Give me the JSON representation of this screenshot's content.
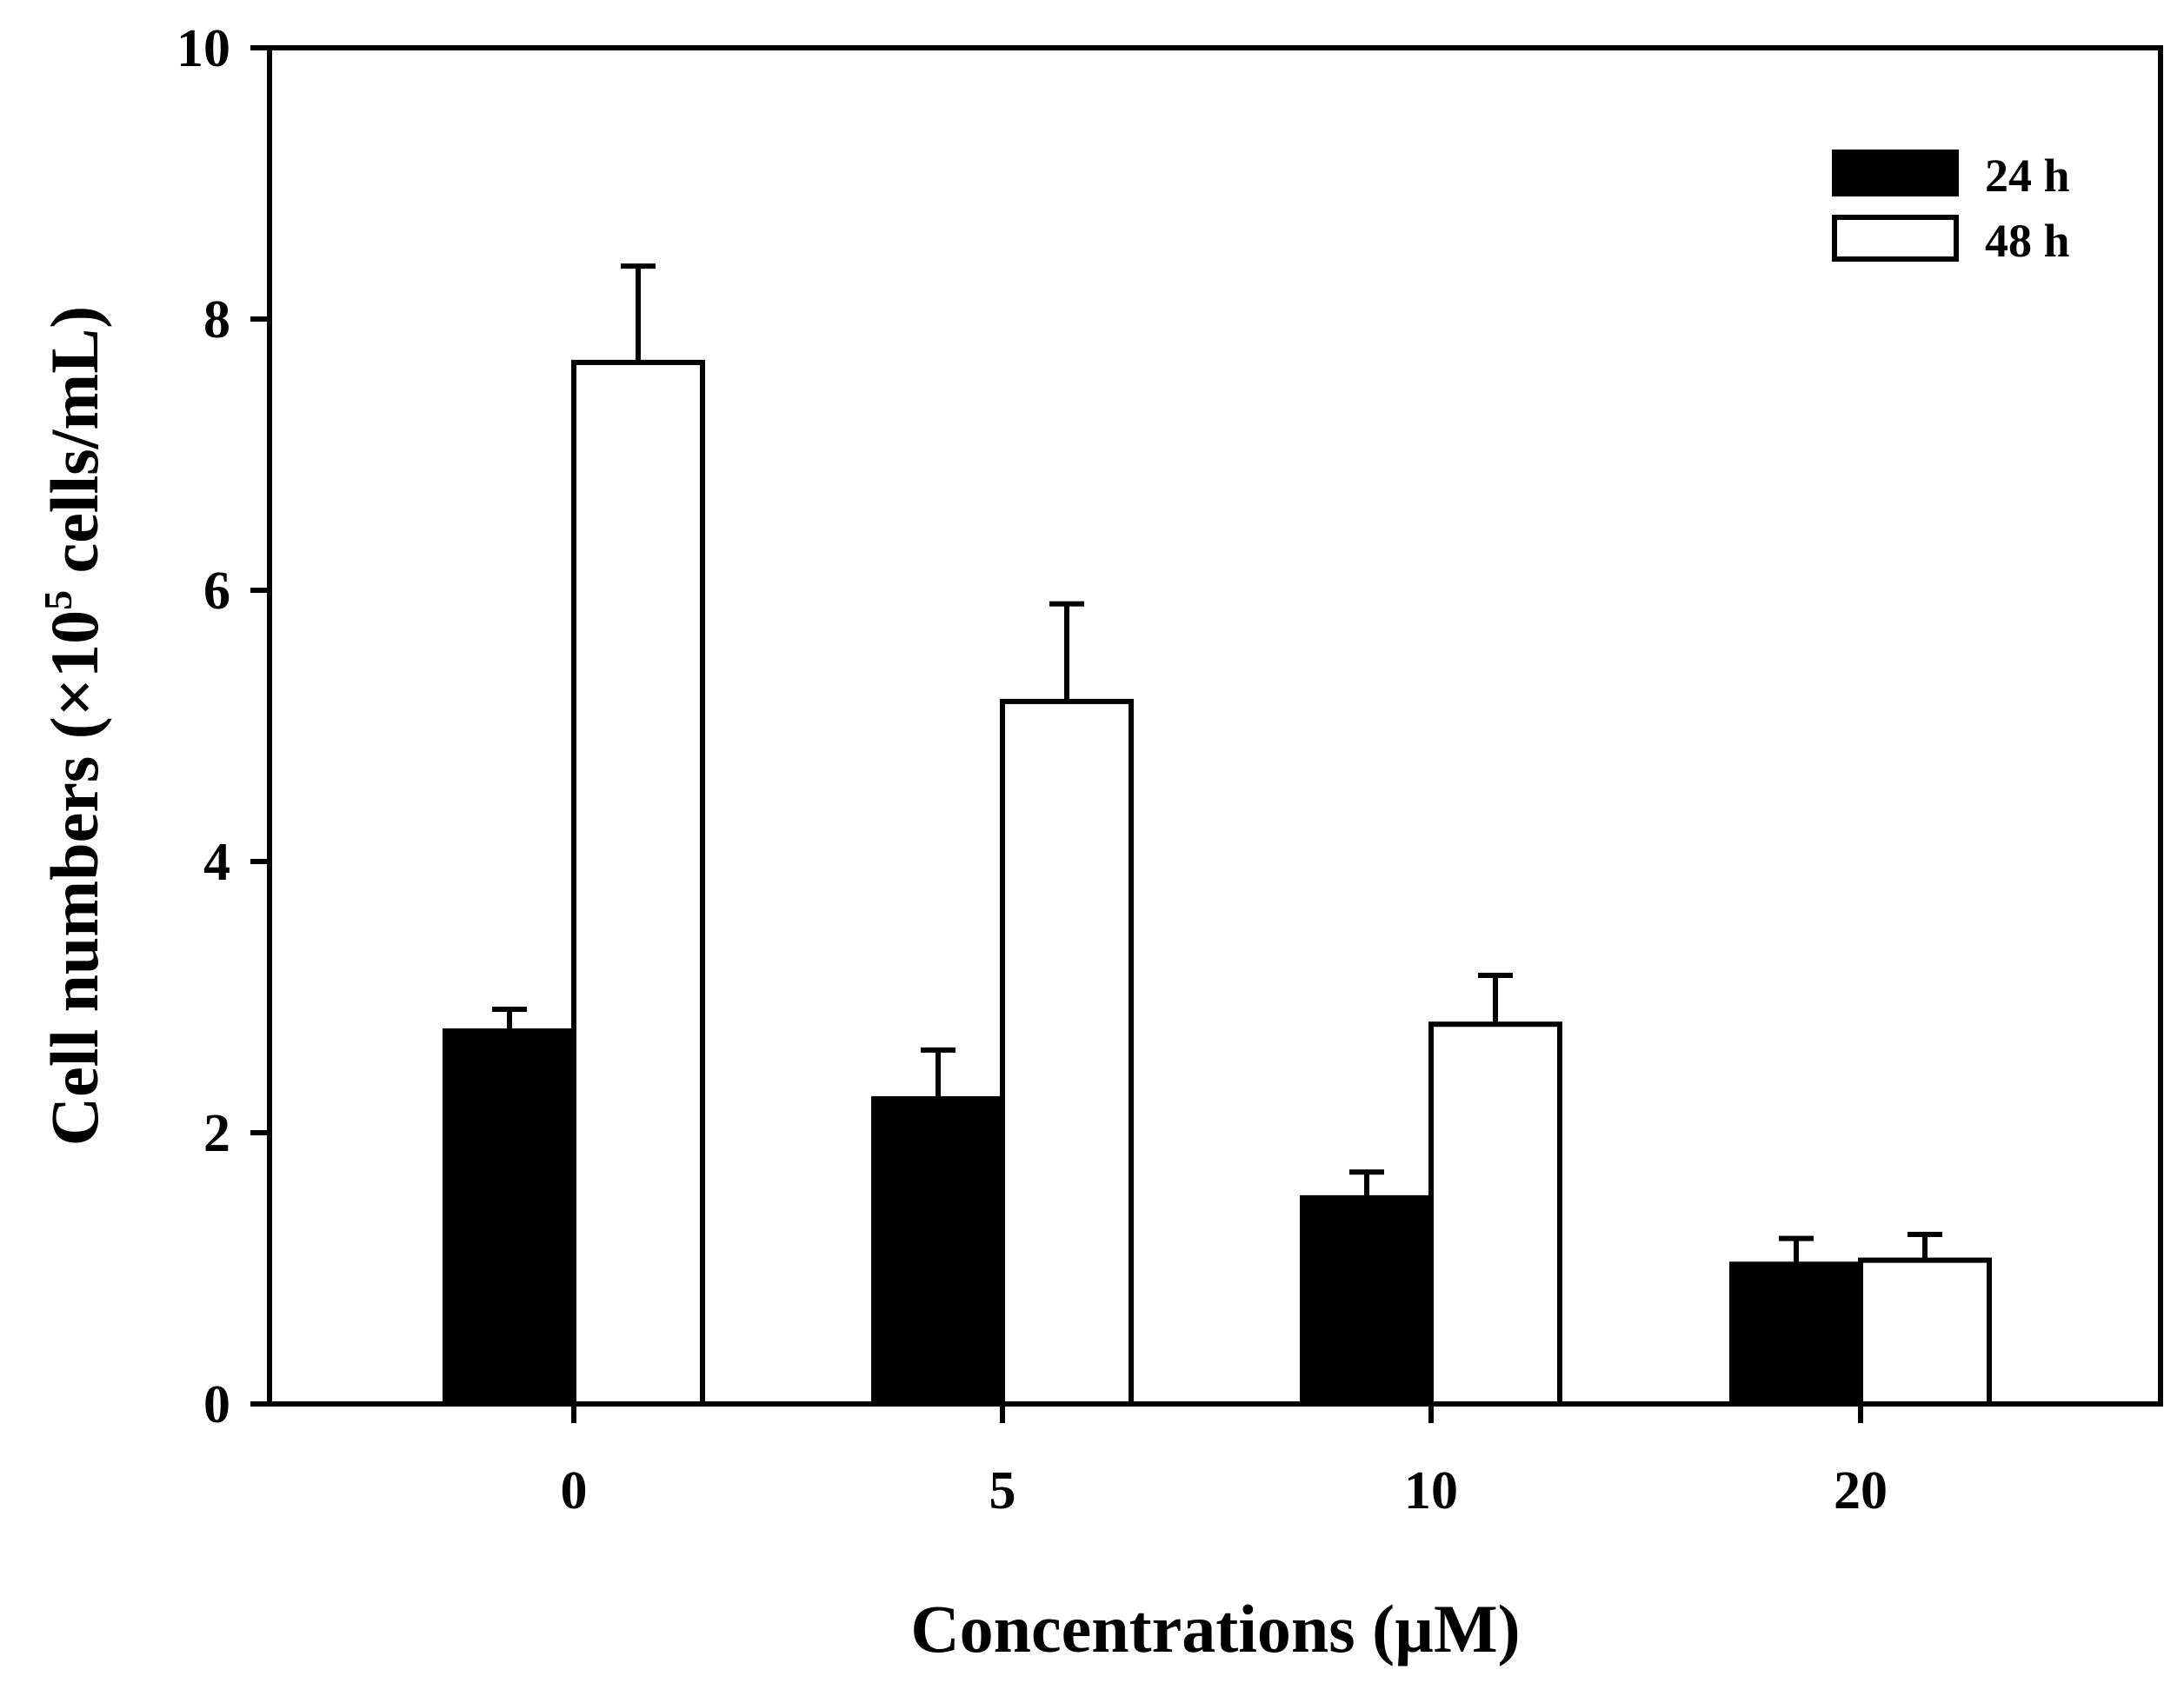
{
  "chart_data": {
    "type": "bar",
    "categories": [
      "0",
      "5",
      "10",
      "20"
    ],
    "series": [
      {
        "name": "24 h",
        "values": [
          2.75,
          2.25,
          1.52,
          1.03
        ],
        "errors": [
          0.16,
          0.36,
          0.19,
          0.19
        ],
        "fill": "#000000"
      },
      {
        "name": "48 h",
        "values": [
          7.68,
          5.18,
          2.8,
          1.06
        ],
        "errors": [
          0.71,
          0.72,
          0.36,
          0.19
        ],
        "fill": "#ffffff"
      }
    ],
    "xlabel": "Concentrations (µM)",
    "ylabel": {
      "prefix": "Cell numbers (×10",
      "superscript": "5",
      "suffix": " cells/mL)"
    },
    "ylim": [
      0,
      10
    ],
    "yticks": [
      "0",
      "2",
      "4",
      "6",
      "8",
      "10"
    ],
    "legend_position": "top-right",
    "grid": false
  }
}
